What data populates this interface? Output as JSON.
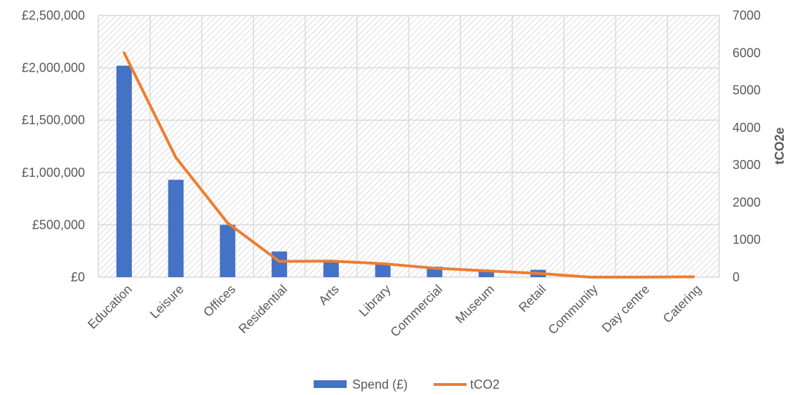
{
  "chart_data": {
    "type": "bar",
    "categories": [
      "Education",
      "Leisure",
      "Offices",
      "Residential",
      "Arts",
      "Library",
      "Commercial",
      "Museum",
      "Retail",
      "Community",
      "Day centre",
      "Catering"
    ],
    "series": [
      {
        "name": "Spend (£)",
        "type": "bar",
        "axis": "left",
        "color": "#4472C4",
        "values": [
          2020000,
          930000,
          500000,
          245000,
          145000,
          135000,
          100000,
          70000,
          70000,
          0,
          0,
          0
        ]
      },
      {
        "name": "tCO2",
        "type": "line",
        "axis": "right",
        "color": "#ED7D31",
        "values": [
          6000,
          3200,
          1450,
          420,
          430,
          360,
          240,
          170,
          100,
          0,
          0,
          10
        ]
      }
    ],
    "y_left": {
      "label": "",
      "range": [
        0,
        2500000
      ],
      "ticks": [
        0,
        500000,
        1000000,
        1500000,
        2000000,
        2500000
      ],
      "tick_labels": [
        "£0",
        "£500,000",
        "£1,000,000",
        "£1,500,000",
        "£2,000,000",
        "£2,500,000"
      ]
    },
    "y_right": {
      "label": "tCO2e",
      "range": [
        0,
        7000
      ],
      "ticks": [
        0,
        1000,
        2000,
        3000,
        4000,
        5000,
        6000,
        7000
      ],
      "tick_labels": [
        "0",
        "1000",
        "2000",
        "3000",
        "4000",
        "5000",
        "6000",
        "7000"
      ]
    },
    "grid": true,
    "legend_position": "bottom"
  }
}
